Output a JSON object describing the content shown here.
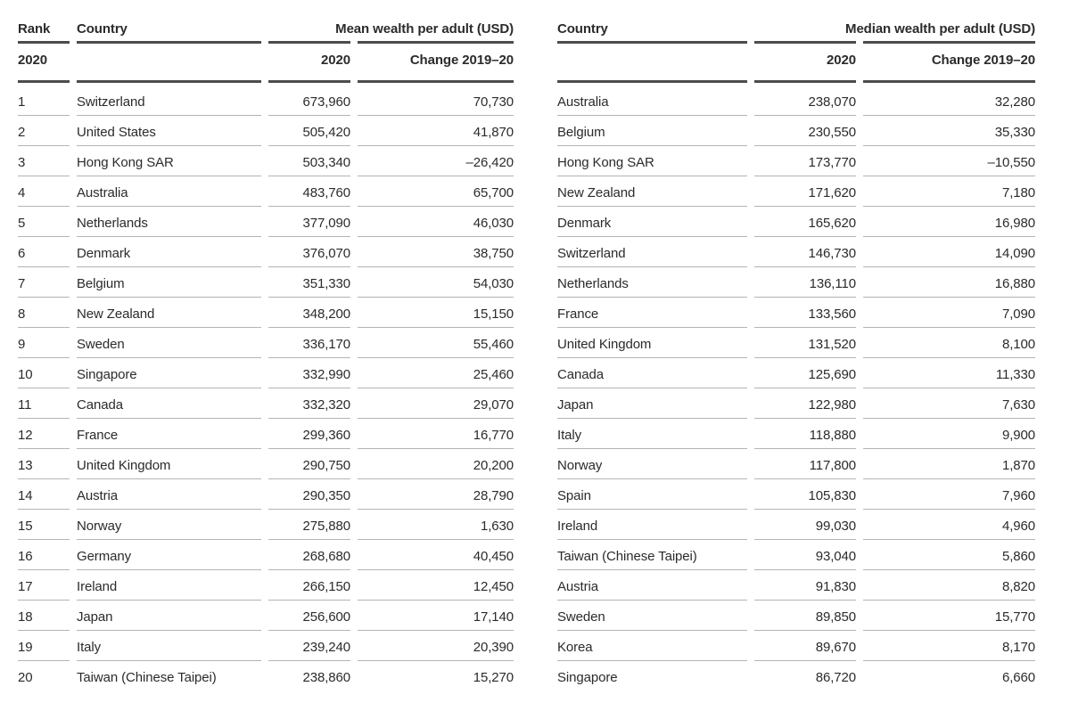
{
  "colors": {
    "background": "#ffffff",
    "text": "#2b2b2b",
    "header_rule": "#4c4c4c",
    "row_rule": "#b4b4b4"
  },
  "mean_table": {
    "header": {
      "rank": "Rank",
      "country": "Country",
      "group": "Mean wealth per adult (USD)",
      "rank_sub": "2020",
      "value_sub": "2020",
      "change_sub": "Change 2019–20"
    },
    "rows": [
      {
        "rank": "1",
        "country": "Switzerland",
        "value": "673,960",
        "change": "70,730"
      },
      {
        "rank": "2",
        "country": "United States",
        "value": "505,420",
        "change": "41,870"
      },
      {
        "rank": "3",
        "country": "Hong Kong SAR",
        "value": "503,340",
        "change": "–26,420"
      },
      {
        "rank": "4",
        "country": "Australia",
        "value": "483,760",
        "change": "65,700"
      },
      {
        "rank": "5",
        "country": "Netherlands",
        "value": "377,090",
        "change": "46,030"
      },
      {
        "rank": "6",
        "country": "Denmark",
        "value": "376,070",
        "change": "38,750"
      },
      {
        "rank": "7",
        "country": "Belgium",
        "value": "351,330",
        "change": "54,030"
      },
      {
        "rank": "8",
        "country": "New Zealand",
        "value": "348,200",
        "change": "15,150"
      },
      {
        "rank": "9",
        "country": "Sweden",
        "value": "336,170",
        "change": "55,460"
      },
      {
        "rank": "10",
        "country": "Singapore",
        "value": "332,990",
        "change": "25,460"
      },
      {
        "rank": "11",
        "country": "Canada",
        "value": "332,320",
        "change": "29,070"
      },
      {
        "rank": "12",
        "country": "France",
        "value": "299,360",
        "change": "16,770"
      },
      {
        "rank": "13",
        "country": "United Kingdom",
        "value": "290,750",
        "change": "20,200"
      },
      {
        "rank": "14",
        "country": "Austria",
        "value": "290,350",
        "change": "28,790"
      },
      {
        "rank": "15",
        "country": "Norway",
        "value": "275,880",
        "change": "1,630"
      },
      {
        "rank": "16",
        "country": "Germany",
        "value": "268,680",
        "change": "40,450"
      },
      {
        "rank": "17",
        "country": "Ireland",
        "value": "266,150",
        "change": "12,450"
      },
      {
        "rank": "18",
        "country": "Japan",
        "value": "256,600",
        "change": "17,140"
      },
      {
        "rank": "19",
        "country": "Italy",
        "value": "239,240",
        "change": "20,390"
      },
      {
        "rank": "20",
        "country": "Taiwan (Chinese Taipei)",
        "value": "238,860",
        "change": "15,270"
      }
    ]
  },
  "median_table": {
    "header": {
      "country": "Country",
      "group": "Median wealth per adult (USD)",
      "value_sub": "2020",
      "change_sub": "Change 2019–20"
    },
    "rows": [
      {
        "country": "Australia",
        "value": "238,070",
        "change": "32,280"
      },
      {
        "country": "Belgium",
        "value": "230,550",
        "change": "35,330"
      },
      {
        "country": "Hong Kong SAR",
        "value": "173,770",
        "change": "–10,550"
      },
      {
        "country": "New Zealand",
        "value": "171,620",
        "change": "7,180"
      },
      {
        "country": "Denmark",
        "value": "165,620",
        "change": "16,980"
      },
      {
        "country": "Switzerland",
        "value": "146,730",
        "change": "14,090"
      },
      {
        "country": "Netherlands",
        "value": "136,110",
        "change": "16,880"
      },
      {
        "country": "France",
        "value": "133,560",
        "change": "7,090"
      },
      {
        "country": "United Kingdom",
        "value": "131,520",
        "change": "8,100"
      },
      {
        "country": "Canada",
        "value": "125,690",
        "change": "11,330"
      },
      {
        "country": "Japan",
        "value": "122,980",
        "change": "7,630"
      },
      {
        "country": "Italy",
        "value": "118,880",
        "change": "9,900"
      },
      {
        "country": "Norway",
        "value": "117,800",
        "change": "1,870"
      },
      {
        "country": "Spain",
        "value": "105,830",
        "change": "7,960"
      },
      {
        "country": "Ireland",
        "value": "99,030",
        "change": "4,960"
      },
      {
        "country": "Taiwan (Chinese Taipei)",
        "value": "93,040",
        "change": "5,860"
      },
      {
        "country": "Austria",
        "value": "91,830",
        "change": "8,820"
      },
      {
        "country": "Sweden",
        "value": "89,850",
        "change": "15,770"
      },
      {
        "country": "Korea",
        "value": "89,670",
        "change": "8,170"
      },
      {
        "country": "Singapore",
        "value": "86,720",
        "change": "6,660"
      }
    ]
  }
}
